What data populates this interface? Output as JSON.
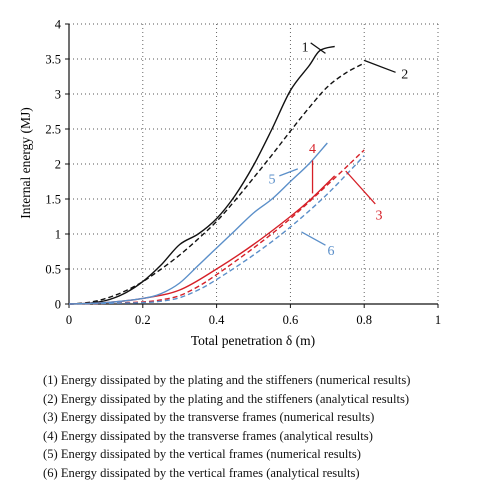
{
  "chart_data": {
    "type": "line",
    "xlabel": "Total penetration δ (m)",
    "ylabel": "Internal energy (MJ)",
    "xlim": [
      0,
      1
    ],
    "ylim": [
      0,
      4
    ],
    "x_ticks": [
      "0",
      "0.2",
      "0.4",
      "0.6",
      "0.8",
      "1"
    ],
    "y_ticks": [
      "0",
      "0.5",
      "1",
      "1.5",
      "2",
      "2.5",
      "3",
      "3.5",
      "4"
    ],
    "grid": "dotted",
    "colors": {
      "black": "#111111",
      "red": "#d62028",
      "blue": "#5b8fc9"
    },
    "series": [
      {
        "id": "1",
        "color": "black",
        "dash": "solid",
        "points": [
          [
            0,
            0
          ],
          [
            0.05,
            0.01
          ],
          [
            0.1,
            0.05
          ],
          [
            0.15,
            0.15
          ],
          [
            0.2,
            0.32
          ],
          [
            0.25,
            0.56
          ],
          [
            0.3,
            0.85
          ],
          [
            0.35,
            1.0
          ],
          [
            0.4,
            1.22
          ],
          [
            0.45,
            1.55
          ],
          [
            0.5,
            1.98
          ],
          [
            0.55,
            2.5
          ],
          [
            0.6,
            3.05
          ],
          [
            0.65,
            3.4
          ],
          [
            0.68,
            3.62
          ],
          [
            0.72,
            3.68
          ]
        ]
      },
      {
        "id": "2",
        "color": "black",
        "dash": "dashed",
        "points": [
          [
            0,
            0
          ],
          [
            0.05,
            0.02
          ],
          [
            0.1,
            0.08
          ],
          [
            0.15,
            0.18
          ],
          [
            0.2,
            0.32
          ],
          [
            0.25,
            0.5
          ],
          [
            0.3,
            0.7
          ],
          [
            0.35,
            0.93
          ],
          [
            0.4,
            1.18
          ],
          [
            0.45,
            1.48
          ],
          [
            0.5,
            1.8
          ],
          [
            0.55,
            2.13
          ],
          [
            0.6,
            2.47
          ],
          [
            0.65,
            2.8
          ],
          [
            0.7,
            3.1
          ],
          [
            0.75,
            3.3
          ],
          [
            0.8,
            3.44
          ]
        ]
      },
      {
        "id": "3",
        "color": "red",
        "dash": "solid",
        "points": [
          [
            0,
            0
          ],
          [
            0.1,
            0.02
          ],
          [
            0.2,
            0.08
          ],
          [
            0.3,
            0.2
          ],
          [
            0.4,
            0.5
          ],
          [
            0.5,
            0.85
          ],
          [
            0.6,
            1.25
          ],
          [
            0.66,
            1.52
          ],
          [
            0.72,
            1.83
          ]
        ]
      },
      {
        "id": "4",
        "color": "red",
        "dash": "dashed",
        "points": [
          [
            0,
            0
          ],
          [
            0.1,
            0.01
          ],
          [
            0.2,
            0.03
          ],
          [
            0.25,
            0.06
          ],
          [
            0.3,
            0.12
          ],
          [
            0.35,
            0.25
          ],
          [
            0.4,
            0.42
          ],
          [
            0.5,
            0.8
          ],
          [
            0.6,
            1.22
          ],
          [
            0.7,
            1.7
          ],
          [
            0.8,
            2.2
          ]
        ]
      },
      {
        "id": "5",
        "color": "blue",
        "dash": "solid",
        "points": [
          [
            0,
            0
          ],
          [
            0.1,
            0.02
          ],
          [
            0.2,
            0.08
          ],
          [
            0.25,
            0.15
          ],
          [
            0.3,
            0.3
          ],
          [
            0.35,
            0.55
          ],
          [
            0.4,
            0.8
          ],
          [
            0.45,
            1.05
          ],
          [
            0.5,
            1.3
          ],
          [
            0.55,
            1.5
          ],
          [
            0.6,
            1.75
          ],
          [
            0.65,
            2.0
          ],
          [
            0.7,
            2.3
          ]
        ]
      },
      {
        "id": "6",
        "color": "blue",
        "dash": "dashed",
        "points": [
          [
            0,
            0
          ],
          [
            0.1,
            0.01
          ],
          [
            0.2,
            0.02
          ],
          [
            0.25,
            0.04
          ],
          [
            0.3,
            0.09
          ],
          [
            0.35,
            0.2
          ],
          [
            0.4,
            0.35
          ],
          [
            0.5,
            0.7
          ],
          [
            0.6,
            1.1
          ],
          [
            0.7,
            1.57
          ],
          [
            0.8,
            2.12
          ]
        ]
      }
    ],
    "annotations": [
      {
        "label": "1",
        "color": "black",
        "text_at": [
          0.64,
          3.68
        ],
        "line": [
          [
            0.655,
            3.73
          ],
          [
            0.695,
            3.58
          ]
        ]
      },
      {
        "label": "2",
        "color": "black",
        "text_at": [
          0.91,
          3.29
        ],
        "line": [
          [
            0.8,
            3.48
          ],
          [
            0.885,
            3.31
          ]
        ]
      },
      {
        "label": "4",
        "color": "red",
        "text_at": [
          0.66,
          2.23
        ],
        "line": [
          [
            0.66,
            2.05
          ],
          [
            0.66,
            1.58
          ]
        ]
      },
      {
        "label": "5",
        "color": "blue",
        "text_at": [
          0.55,
          1.79
        ],
        "line": [
          [
            0.57,
            1.83
          ],
          [
            0.62,
            1.93
          ]
        ]
      },
      {
        "label": "3",
        "color": "red",
        "text_at": [
          0.84,
          1.28
        ],
        "line": [
          [
            0.75,
            1.9
          ],
          [
            0.83,
            1.43
          ]
        ]
      },
      {
        "label": "6",
        "color": "blue",
        "text_at": [
          0.71,
          0.77
        ],
        "line": [
          [
            0.63,
            1.03
          ],
          [
            0.695,
            0.84
          ]
        ]
      }
    ]
  },
  "legend": [
    "(1) Energy dissipated by the plating and the stiffeners (numerical results)",
    "(2) Energy dissipated by the plating and the stiffeners (analytical results)",
    "(3) Energy dissipated by the transverse frames (numerical results)",
    "(4) Energy dissipated by the transverse frames (analytical results)",
    "(5) Energy dissipated by the vertical frames (numerical results)",
    "(6) Energy dissipated by the vertical frames (analytical results)"
  ]
}
